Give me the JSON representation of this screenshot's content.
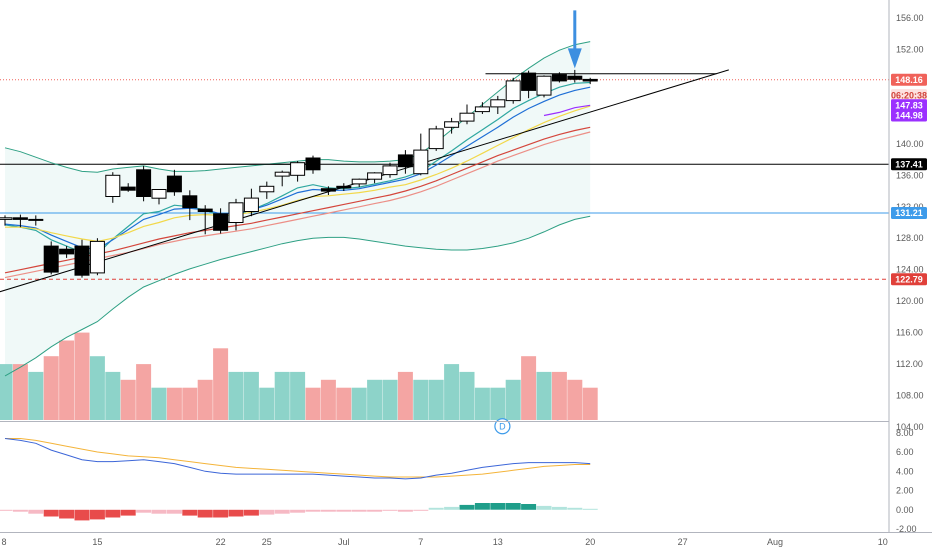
{
  "chart_data": {
    "type": "candlestick",
    "price_axis": {
      "range": [
        102,
        157
      ],
      "ticks": [
        104,
        108,
        112,
        116,
        120,
        124,
        128,
        132,
        136,
        140,
        144,
        148,
        152,
        156
      ],
      "tick_labels": [
        "104.00",
        "108.00",
        "112.00",
        "116.00",
        "120.00",
        "124.00",
        "128.00",
        "132.00",
        "136.00",
        "140.00",
        "144.00",
        "148.00",
        "152.00",
        "156.00"
      ],
      "side": "right"
    },
    "indicator_axis": {
      "range": [
        -2.3,
        8.2
      ],
      "ticks": [
        -2,
        0,
        2,
        4,
        6,
        8
      ],
      "tick_labels": [
        "-2.00",
        "0.00",
        "2.00",
        "4.00",
        "6.00",
        "8.00"
      ]
    },
    "time_axis": {
      "labels": [
        "8",
        "15",
        "22",
        "25",
        "Jul",
        "7",
        "13",
        "20",
        "27",
        "Aug",
        "10"
      ],
      "label_bar_index": [
        0,
        6,
        14,
        17,
        22,
        27,
        32,
        38,
        44,
        50,
        57
      ]
    },
    "candles": [
      {
        "o": 130.4,
        "h": 130.9,
        "c": 130.6,
        "l": 129.6
      },
      {
        "o": 130.6,
        "h": 131.0,
        "c": 130.4,
        "l": 129.4
      },
      {
        "o": 130.4,
        "h": 130.9,
        "c": 130.4,
        "l": 129.6
      },
      {
        "o": 127.0,
        "h": 127.6,
        "c": 123.7,
        "l": 123.4
      },
      {
        "o": 126.6,
        "h": 127.0,
        "c": 126.0,
        "l": 125.5
      },
      {
        "o": 127.0,
        "h": 127.8,
        "c": 123.3,
        "l": 123.0
      },
      {
        "o": 123.6,
        "h": 128.0,
        "c": 127.6,
        "l": 123.3
      },
      {
        "o": 133.3,
        "h": 136.4,
        "c": 136.0,
        "l": 132.5
      },
      {
        "o": 134.5,
        "h": 135.0,
        "c": 134.1,
        "l": 133.9
      },
      {
        "o": 136.7,
        "h": 137.2,
        "c": 133.3,
        "l": 132.7
      },
      {
        "o": 133.1,
        "h": 134.2,
        "c": 134.2,
        "l": 132.3
      },
      {
        "o": 135.9,
        "h": 136.7,
        "c": 133.9,
        "l": 133.4
      },
      {
        "o": 133.4,
        "h": 134.1,
        "c": 131.9,
        "l": 130.3
      },
      {
        "o": 131.7,
        "h": 132.2,
        "c": 131.4,
        "l": 128.5
      },
      {
        "o": 131.1,
        "h": 131.8,
        "c": 129.0,
        "l": 128.6
      },
      {
        "o": 130.0,
        "h": 133.0,
        "c": 132.5,
        "l": 129.0
      },
      {
        "o": 131.4,
        "h": 134.3,
        "c": 133.1,
        "l": 130.8
      },
      {
        "o": 133.9,
        "h": 135.2,
        "c": 134.6,
        "l": 133.0
      },
      {
        "o": 135.9,
        "h": 136.6,
        "c": 136.4,
        "l": 134.6
      },
      {
        "o": 136.0,
        "h": 137.8,
        "c": 137.6,
        "l": 135.2
      },
      {
        "o": 138.2,
        "h": 138.5,
        "c": 136.7,
        "l": 136.2
      },
      {
        "o": 134.3,
        "h": 134.6,
        "c": 134.0,
        "l": 133.5
      },
      {
        "o": 134.6,
        "h": 135.0,
        "c": 134.4,
        "l": 134.0
      },
      {
        "o": 134.9,
        "h": 135.6,
        "c": 135.5,
        "l": 134.5
      },
      {
        "o": 135.5,
        "h": 136.4,
        "c": 136.3,
        "l": 135.0
      },
      {
        "o": 136.1,
        "h": 137.6,
        "c": 137.2,
        "l": 135.7
      },
      {
        "o": 138.6,
        "h": 139.2,
        "c": 137.1,
        "l": 136.2
      },
      {
        "o": 136.2,
        "h": 141.3,
        "c": 139.2,
        "l": 136.0
      },
      {
        "o": 139.4,
        "h": 142.3,
        "c": 141.9,
        "l": 139.1
      },
      {
        "o": 142.1,
        "h": 143.3,
        "c": 142.8,
        "l": 141.3
      },
      {
        "o": 142.9,
        "h": 145.0,
        "c": 143.9,
        "l": 142.5
      },
      {
        "o": 144.1,
        "h": 145.3,
        "c": 144.7,
        "l": 143.8
      },
      {
        "o": 144.7,
        "h": 146.1,
        "c": 145.6,
        "l": 143.8
      },
      {
        "o": 145.5,
        "h": 148.4,
        "c": 148.0,
        "l": 145.1
      },
      {
        "o": 149.0,
        "h": 149.3,
        "c": 146.8,
        "l": 145.8
      },
      {
        "o": 146.2,
        "h": 148.7,
        "c": 148.6,
        "l": 145.9
      },
      {
        "o": 148.8,
        "h": 149.1,
        "c": 148.0,
        "l": 147.8
      },
      {
        "o": 148.6,
        "h": 149.4,
        "c": 148.2,
        "l": 147.8
      },
      {
        "o": 148.2,
        "h": 148.4,
        "c": 148.0,
        "l": 147.6
      }
    ],
    "volume_pane": {
      "values": [
        112,
        112,
        111,
        113,
        115,
        116,
        113,
        111,
        110,
        112,
        109,
        109,
        109,
        110,
        114,
        111,
        111,
        109,
        111,
        111,
        109,
        110,
        109,
        109,
        110,
        110,
        111,
        110,
        110,
        112,
        111,
        109,
        109,
        110,
        113,
        111,
        111,
        110,
        109
      ],
      "note": "volume bar tops expressed on the price scale"
    },
    "moving_averages": [
      {
        "color": "#2ea7a0",
        "values": [
          129.7,
          129.4,
          129.0,
          127.8,
          127.0,
          126.2,
          126.0,
          127.9,
          129.5,
          131.1,
          131.4,
          132.2,
          132.0,
          131.6,
          130.8,
          131.0,
          131.6,
          132.4,
          133.4,
          134.4,
          134.8,
          134.4,
          134.3,
          134.5,
          134.9,
          135.3,
          135.8,
          136.5,
          137.8,
          139.1,
          140.5,
          141.8,
          143.1,
          144.5,
          145.5,
          146.4,
          147.2,
          147.7,
          147.8
        ]
      },
      {
        "color": "#1f6fd6",
        "values": [
          129.8,
          129.6,
          129.3,
          128.4,
          127.6,
          126.8,
          126.6,
          127.8,
          129.1,
          130.4,
          131.0,
          131.7,
          131.8,
          131.6,
          131.1,
          131.2,
          131.6,
          132.2,
          133.0,
          133.8,
          134.2,
          134.1,
          134.1,
          134.3,
          134.7,
          135.1,
          135.5,
          136.2,
          137.3,
          138.5,
          139.7,
          140.9,
          142.1,
          143.4,
          144.5,
          145.4,
          146.2,
          146.8,
          147.2
        ]
      },
      {
        "color": "#f2d84a",
        "values": [
          129.4,
          129.4,
          129.2,
          128.7,
          128.3,
          127.9,
          127.6,
          128.0,
          128.7,
          129.5,
          130.0,
          130.6,
          130.9,
          131.0,
          130.9,
          131.0,
          131.3,
          131.7,
          132.2,
          132.8,
          133.3,
          133.4,
          133.6,
          133.8,
          134.1,
          134.5,
          134.8,
          135.4,
          136.1,
          136.9,
          137.8,
          138.8,
          139.8,
          140.8,
          141.8,
          142.7,
          143.5,
          144.2,
          144.8
        ]
      },
      {
        "color": "#9b30ff",
        "values": [
          null,
          null,
          null,
          null,
          null,
          null,
          null,
          null,
          null,
          null,
          null,
          null,
          null,
          null,
          null,
          null,
          null,
          null,
          null,
          null,
          null,
          null,
          null,
          null,
          null,
          null,
          null,
          null,
          null,
          null,
          null,
          null,
          null,
          null,
          null,
          143.6,
          144.0,
          144.6,
          144.9
        ]
      },
      {
        "color": "#d4463c",
        "values": [
          123.6,
          124.0,
          124.4,
          124.8,
          125.2,
          125.6,
          126.0,
          126.4,
          126.9,
          127.4,
          127.9,
          128.3,
          128.7,
          129.0,
          129.3,
          129.6,
          129.9,
          130.3,
          130.7,
          131.1,
          131.5,
          131.9,
          132.3,
          132.7,
          133.1,
          133.5,
          134.0,
          134.6,
          135.3,
          136.1,
          136.9,
          137.7,
          138.5,
          139.2,
          139.9,
          140.6,
          141.2,
          141.7,
          142.1
        ]
      },
      {
        "color": "#ec8f87",
        "values": [
          123.0,
          123.4,
          123.8,
          124.2,
          124.6,
          125.0,
          125.4,
          125.8,
          126.2,
          126.7,
          127.2,
          127.6,
          128.0,
          128.3,
          128.6,
          128.9,
          129.2,
          129.6,
          130.0,
          130.4,
          130.8,
          131.2,
          131.6,
          132.0,
          132.4,
          132.8,
          133.3,
          133.9,
          134.6,
          135.4,
          136.2,
          137.0,
          137.8,
          138.5,
          139.2,
          139.9,
          140.5,
          141.0,
          141.5
        ]
      }
    ],
    "bollinger": {
      "upper": [
        139.5,
        139.0,
        138.3,
        137.6,
        137.0,
        136.5,
        136.4,
        136.8,
        137.0,
        137.2,
        136.8,
        136.5,
        136.5,
        136.6,
        136.8,
        137.0,
        137.2,
        137.4,
        137.6,
        137.8,
        138.0,
        138.0,
        137.8,
        137.7,
        137.7,
        137.8,
        138.0,
        138.8,
        140.2,
        141.8,
        143.4,
        145.0,
        146.6,
        148.2,
        149.6,
        150.9,
        151.9,
        152.6,
        153.0
      ],
      "lower": [
        110.5,
        111.6,
        112.8,
        114.2,
        115.4,
        116.4,
        117.4,
        119.0,
        120.5,
        121.8,
        122.6,
        123.4,
        124.1,
        124.7,
        125.3,
        125.8,
        126.3,
        126.8,
        127.3,
        127.7,
        128.0,
        128.1,
        128.1,
        127.9,
        127.6,
        127.3,
        127.0,
        126.8,
        126.6,
        126.5,
        126.5,
        126.7,
        127.0,
        127.4,
        128.0,
        128.8,
        129.7,
        130.4,
        130.8
      ]
    },
    "macd": {
      "macd_line": [
        7.4,
        7.2,
        6.9,
        6.2,
        5.7,
        5.2,
        5.0,
        5.0,
        5.1,
        5.2,
        5.0,
        4.8,
        4.4,
        4.0,
        3.8,
        3.7,
        3.7,
        3.7,
        3.7,
        3.7,
        3.7,
        3.6,
        3.5,
        3.4,
        3.3,
        3.3,
        3.2,
        3.3,
        3.6,
        3.8,
        4.1,
        4.4,
        4.6,
        4.8,
        4.9,
        4.9,
        4.9,
        4.9,
        4.8
      ],
      "signal_line": [
        7.4,
        7.4,
        7.2,
        6.9,
        6.6,
        6.3,
        6.0,
        5.8,
        5.6,
        5.5,
        5.4,
        5.2,
        5.0,
        4.8,
        4.6,
        4.4,
        4.3,
        4.2,
        4.1,
        4.0,
        3.9,
        3.8,
        3.7,
        3.6,
        3.5,
        3.4,
        3.4,
        3.4,
        3.4,
        3.5,
        3.6,
        3.7,
        3.9,
        4.1,
        4.3,
        4.5,
        4.6,
        4.7,
        4.7
      ],
      "histogram": [
        -0.1,
        -0.2,
        -0.4,
        -0.7,
        -0.9,
        -1.1,
        -1.0,
        -0.8,
        -0.6,
        -0.3,
        -0.4,
        -0.4,
        -0.6,
        -0.8,
        -0.8,
        -0.7,
        -0.6,
        -0.5,
        -0.4,
        -0.3,
        -0.2,
        -0.2,
        -0.2,
        -0.2,
        -0.2,
        -0.1,
        -0.2,
        -0.1,
        0.2,
        0.3,
        0.5,
        0.7,
        0.7,
        0.7,
        0.6,
        0.4,
        0.3,
        0.2,
        0.1
      ]
    },
    "horizontal_levels": [
      {
        "value": 148.16,
        "label": "148.16",
        "color": "#f0625a",
        "style": "dotted"
      },
      {
        "value": 137.41,
        "label": "137.41",
        "color": "#000000",
        "style": "solid"
      },
      {
        "value": 131.21,
        "label": "131.21",
        "color": "#3d9bea",
        "style": "solid"
      },
      {
        "value": 122.79,
        "label": "122.79",
        "color": "#e0403a",
        "style": "dashed"
      }
    ],
    "price_tags": [
      {
        "value": 148.16,
        "label": "148.16",
        "bg": "#f0625a",
        "fg": "#ffffff"
      },
      {
        "value": 146.2,
        "label": "06:20:38",
        "bg": "#fde1df",
        "fg": "#d0433b"
      },
      {
        "value": 144.9,
        "label": "147.83",
        "bg": "#9b30ff",
        "fg": "#ffffff"
      },
      {
        "value": 143.6,
        "label": "144.98",
        "bg": "#9b30ff",
        "fg": "#ffffff"
      },
      {
        "value": 137.41,
        "label": "137.41",
        "bg": "#000000",
        "fg": "#ffffff"
      },
      {
        "value": 131.21,
        "label": "131.21",
        "bg": "#3d9bea",
        "fg": "#ffffff"
      },
      {
        "value": 122.79,
        "label": "122.79",
        "bg": "#e0403a",
        "fg": "#ffffff"
      }
    ],
    "trendlines": [
      {
        "from_bar": -0.5,
        "from_price": 121.1,
        "to_bar": 47.0,
        "to_price": 149.4,
        "color": "#000000"
      },
      {
        "from_bar": 31.2,
        "from_price": 148.9,
        "to_bar": 46.2,
        "to_price": 148.9,
        "color": "#000000"
      },
      {
        "from_bar": 7.3,
        "from_price": 137.4,
        "to_bar": 20.0,
        "to_price": 137.4,
        "color": "#000000"
      }
    ],
    "annotations": [
      {
        "type": "arrow-down",
        "bar": 37,
        "price": 149.6,
        "color": "#3d8fe0"
      },
      {
        "type": "event-badge",
        "text": "D",
        "bar": 32.3,
        "price": 104.1
      }
    ],
    "grid": false
  }
}
